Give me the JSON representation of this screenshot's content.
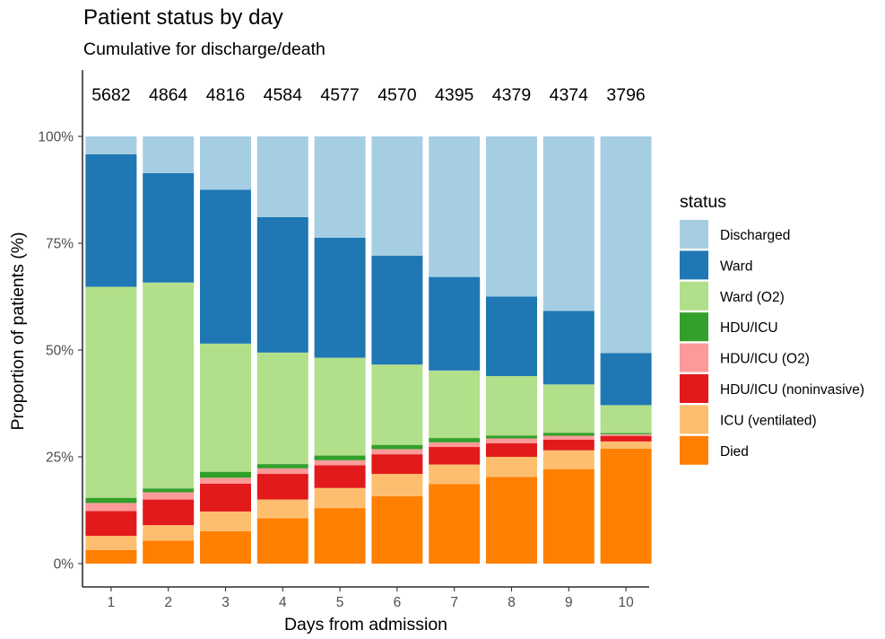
{
  "title": "Patient status by day",
  "subtitle": "Cumulative for discharge/death",
  "legend_title": "status",
  "chart_data": {
    "type": "bar",
    "stacked": true,
    "normalized": true,
    "title": "Patient status by day",
    "subtitle": "Cumulative for discharge/death",
    "xlabel": "Days from admission",
    "ylabel": "Proportion of patients (%)",
    "ylim": [
      0,
      1
    ],
    "yticks": [
      "0%",
      "25%",
      "50%",
      "75%",
      "100%"
    ],
    "categories": [
      "1",
      "2",
      "3",
      "4",
      "5",
      "6",
      "7",
      "8",
      "9",
      "10"
    ],
    "counts": [
      "5682",
      "4864",
      "4816",
      "4584",
      "4577",
      "4570",
      "4395",
      "4379",
      "4374",
      "3796"
    ],
    "legend_position": "right",
    "grid": false,
    "series": [
      {
        "name": "Died",
        "color": "#FF7F00",
        "values": [
          3.2,
          5.4,
          7.6,
          10.6,
          13.0,
          15.8,
          18.6,
          20.3,
          22.1,
          26.9
        ]
      },
      {
        "name": "ICU (ventilated)",
        "color": "#FDBF6F",
        "values": [
          3.3,
          3.6,
          4.6,
          4.4,
          4.7,
          5.2,
          4.6,
          4.7,
          4.4,
          1.7
        ]
      },
      {
        "name": "HDU/ICU (noninvasive)",
        "color": "#E31A1C",
        "values": [
          5.8,
          6.0,
          6.5,
          6.0,
          5.3,
          4.6,
          4.1,
          3.2,
          2.5,
          1.3
        ]
      },
      {
        "name": "HDU/ICU (O2)",
        "color": "#FB9A99",
        "values": [
          1.9,
          1.7,
          1.4,
          1.3,
          1.2,
          1.2,
          1.1,
          1.1,
          0.9,
          0.4
        ]
      },
      {
        "name": "HDU/ICU",
        "color": "#33A02C",
        "values": [
          1.2,
          0.9,
          1.4,
          1.0,
          1.1,
          1.0,
          1.0,
          0.7,
          0.7,
          0.3
        ]
      },
      {
        "name": "Ward (O2)",
        "color": "#B2DF8A",
        "values": [
          49.4,
          48.2,
          30.0,
          26.1,
          22.9,
          18.8,
          15.8,
          13.9,
          11.3,
          6.5
        ]
      },
      {
        "name": "Ward",
        "color": "#1F78B4",
        "values": [
          31.0,
          25.6,
          36.0,
          31.7,
          28.1,
          25.5,
          21.9,
          18.6,
          17.2,
          12.2
        ]
      },
      {
        "name": "Discharged",
        "color": "#A6CEE3",
        "values": [
          4.2,
          8.6,
          12.5,
          18.9,
          23.7,
          27.9,
          32.9,
          37.5,
          40.8,
          50.7
        ]
      }
    ],
    "legend_order": [
      "Discharged",
      "Ward",
      "Ward (O2)",
      "HDU/ICU",
      "HDU/ICU (O2)",
      "HDU/ICU (noninvasive)",
      "ICU (ventilated)",
      "Died"
    ]
  }
}
